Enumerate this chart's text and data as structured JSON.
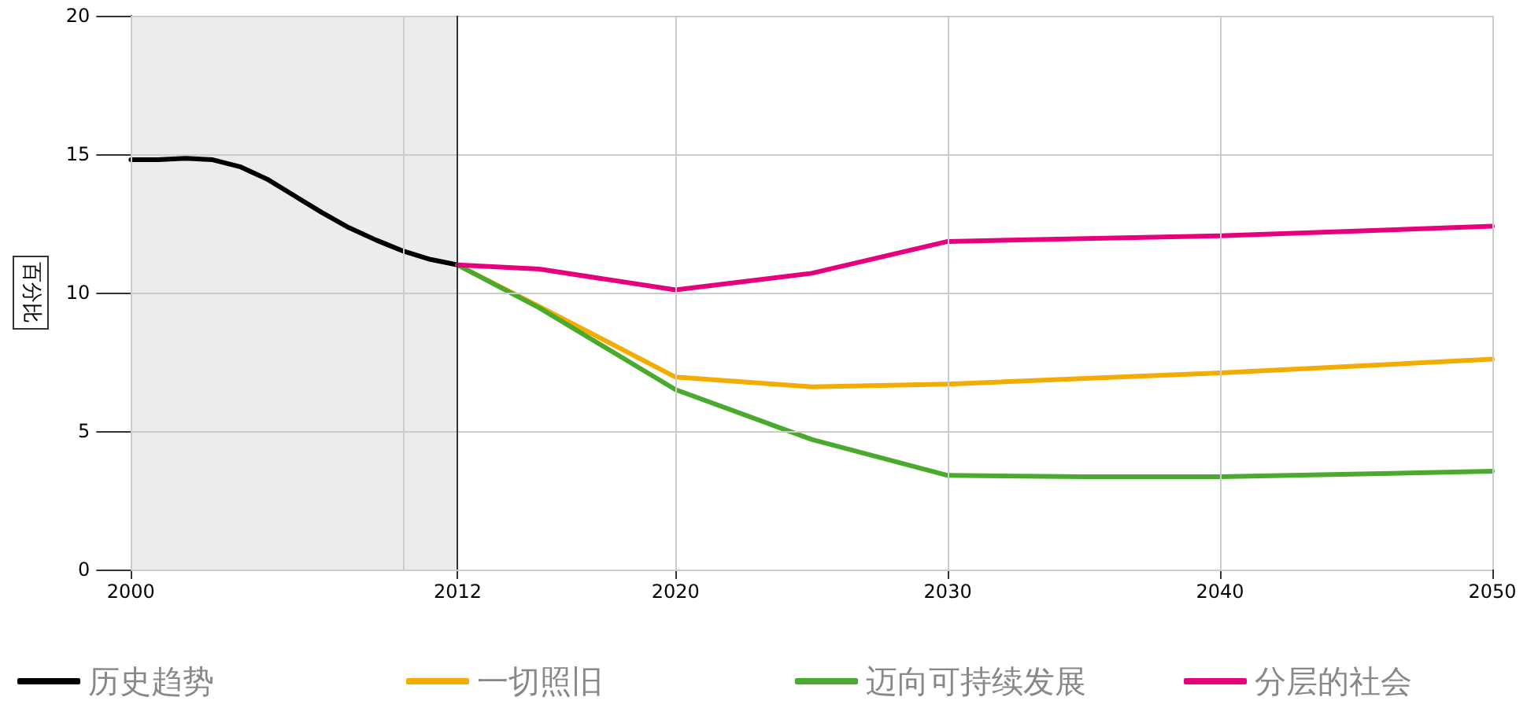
{
  "chart_data": {
    "type": "line",
    "ylabel": "百分比",
    "xlim": [
      2000,
      2050
    ],
    "xticks": [
      2000,
      {
        "value": 2010,
        "label": null
      },
      2012,
      2020,
      2030,
      2040,
      2050
    ],
    "ylim": [
      0,
      20
    ],
    "yticks": [
      0,
      5,
      10,
      15,
      20
    ],
    "series": [
      {
        "name": "历史趋势",
        "color": "#000000",
        "x": [
          2000,
          2001,
          2002,
          2003,
          2004,
          2005,
          2006,
          2007,
          2008,
          2009,
          2010,
          2011,
          2012
        ],
        "values": [
          14.8,
          14.8,
          14.85,
          14.8,
          14.55,
          14.1,
          13.5,
          12.9,
          12.35,
          11.9,
          11.5,
          11.2,
          11.0
        ]
      },
      {
        "name": "一切照旧",
        "color": "#f5ac00",
        "x": [
          2012,
          2015,
          2020,
          2025,
          2030,
          2040,
          2050
        ],
        "values": [
          11.0,
          9.5,
          6.95,
          6.6,
          6.7,
          7.1,
          7.6
        ]
      },
      {
        "name": "迈向可持续发展",
        "color": "#4aaa2e",
        "x": [
          2012,
          2015,
          2020,
          2025,
          2030,
          2035,
          2040,
          2050
        ],
        "values": [
          11.0,
          9.45,
          6.5,
          4.7,
          3.4,
          3.35,
          3.35,
          3.55
        ]
      },
      {
        "name": "分层的社会",
        "color": "#e6007e",
        "x": [
          2012,
          2015,
          2020,
          2025,
          2030,
          2040,
          2050
        ],
        "values": [
          11.0,
          10.85,
          10.1,
          10.7,
          11.85,
          12.05,
          12.4
        ]
      }
    ],
    "bands": [
      {
        "axis": "x",
        "from": 2000,
        "to": 2012,
        "color": "#ececec"
      }
    ],
    "ref_lines": [
      {
        "axis": "x",
        "value": 2012,
        "color": "#333333"
      }
    ],
    "grid": true,
    "legend": "bottom",
    "marker": "none",
    "line_style": "solid"
  }
}
